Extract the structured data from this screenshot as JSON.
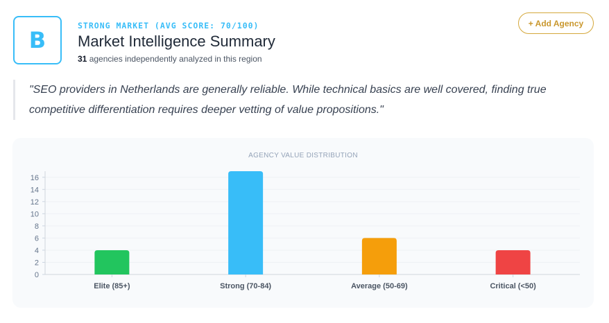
{
  "header": {
    "grade": "B",
    "eyebrow": "STRONG MARKET (AVG SCORE: 70/100)",
    "title": "Market Intelligence Summary",
    "agency_count": "31",
    "agency_count_suffix": " agencies independently analyzed in this region",
    "add_button": "+ Add Agency"
  },
  "quote": "\"SEO providers in Netherlands are generally reliable. While technical basics are well covered, finding true competitive differentiation requires deeper vetting of value propositions.\"",
  "colors": {
    "accent": "#38bdf8",
    "gold": "#d4a73a"
  },
  "chart_data": {
    "type": "bar",
    "title": "AGENCY VALUE DISTRIBUTION",
    "categories": [
      "Elite (85+)",
      "Strong (70-84)",
      "Average (50-69)",
      "Critical (<50)"
    ],
    "values": [
      4,
      17,
      6,
      4
    ],
    "colors": [
      "#22c55e",
      "#38bdf8",
      "#f59e0b",
      "#ef4444"
    ],
    "yticks": [
      0,
      2,
      4,
      6,
      8,
      10,
      12,
      14,
      16
    ],
    "ylim": [
      0,
      17
    ],
    "xlabel": "",
    "ylabel": "",
    "grid": true
  }
}
